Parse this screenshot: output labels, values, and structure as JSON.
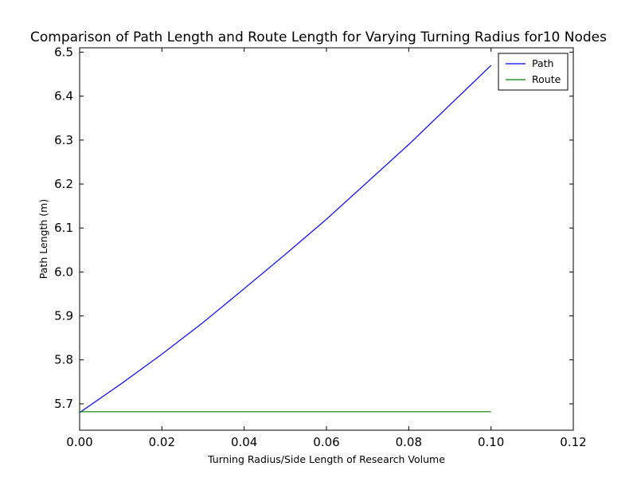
{
  "chart_data": {
    "type": "line",
    "title": "Comparison of Path Length and Route Length for Varying Turning Radius for10 Nodes",
    "xlabel": "Turning Radius/Side Length of Research Volume",
    "ylabel": "Path Length (m)",
    "xlim": [
      0.0,
      0.12
    ],
    "ylim": [
      5.64,
      6.51
    ],
    "xticks": [
      "0.00",
      "0.02",
      "0.04",
      "0.06",
      "0.08",
      "0.10",
      "0.12"
    ],
    "yticks": [
      "5.7",
      "5.8",
      "5.9",
      "6.0",
      "6.1",
      "6.2",
      "6.3",
      "6.4",
      "6.5"
    ],
    "grid": false,
    "legend_position": "top-right",
    "series": [
      {
        "name": "Path",
        "color": "#0000ff",
        "x": [
          0.0,
          0.01,
          0.02,
          0.03,
          0.04,
          0.05,
          0.06,
          0.07,
          0.08,
          0.09,
          0.1
        ],
        "y": [
          5.68,
          5.745,
          5.813,
          5.885,
          5.962,
          6.04,
          6.12,
          6.205,
          6.29,
          6.38,
          6.47
        ]
      },
      {
        "name": "Route",
        "color": "#008000",
        "x": [
          0.0,
          0.1
        ],
        "y": [
          5.682,
          5.682
        ]
      }
    ]
  }
}
